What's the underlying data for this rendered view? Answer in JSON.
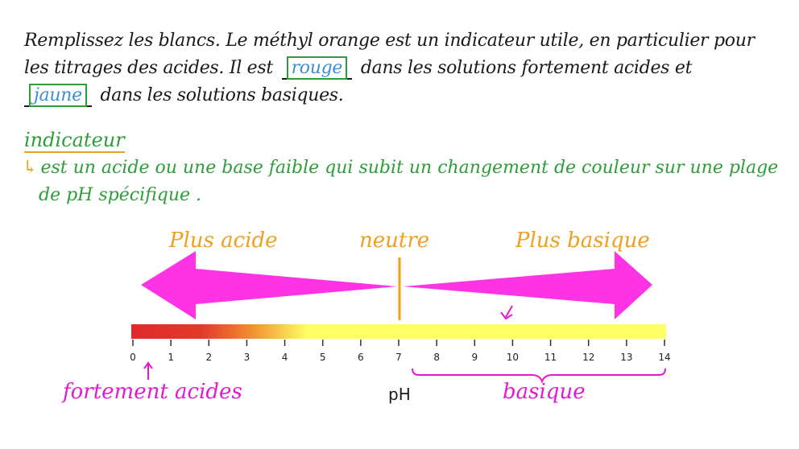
{
  "question": {
    "line1": "Remplissez les blancs. Le méthyl orange est un indicateur utile, en particulier pour",
    "line2_a": "les titrages des acides. Il est",
    "answer_acid": "rouge",
    "line2_b": "dans les solutions fortement acides et",
    "answer_base": "jaune",
    "line3_b": "dans les solutions basiques."
  },
  "definition": {
    "title": "indicateur",
    "arrow": "↳",
    "line1": "est un acide ou une base faible qui subit un changement de couleur sur une plage",
    "line2": "de pH spécifique ."
  },
  "diagram": {
    "label_acid": "Plus acide",
    "label_neutral": "neutre",
    "label_basic": "Plus basique",
    "ticks": [
      "0",
      "1",
      "2",
      "3",
      "4",
      "5",
      "6",
      "7",
      "8",
      "9",
      "10",
      "11",
      "12",
      "13",
      "14"
    ],
    "label_strong_acid": "fortement acides",
    "label_ph": "pH",
    "label_basic_range": "basique",
    "colors": {
      "arrow": "#ff33e6",
      "neutral": "#f0a020",
      "bar_red": "#e02a2a",
      "bar_orange": "#f08a30",
      "bar_yellow": "#ffff66",
      "handwriting_green": "#2e9e3a",
      "label_magenta": "#e21bd0"
    }
  }
}
